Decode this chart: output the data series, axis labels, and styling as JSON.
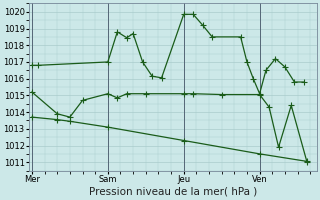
{
  "background_color": "#cce8e8",
  "grid_color": "#aacccc",
  "line_color": "#1a5c1a",
  "title": "Pression niveau de la mer( hPa )",
  "ylim": [
    1010.5,
    1020.5
  ],
  "yticks": [
    1011,
    1012,
    1013,
    1014,
    1015,
    1016,
    1017,
    1018,
    1019,
    1020
  ],
  "day_labels": [
    "Mer",
    "Sam",
    "Jeu",
    "Ven"
  ],
  "day_positions": [
    0,
    24,
    48,
    72
  ],
  "xlim": [
    -1,
    90
  ],
  "vlines_x": [
    0,
    24,
    48,
    72
  ],
  "line1_x": [
    0,
    2,
    24,
    27,
    30,
    32,
    35,
    38,
    41,
    48,
    51,
    54,
    57,
    66,
    68,
    70,
    72,
    74,
    77,
    80,
    83,
    86
  ],
  "line1_y": [
    1016.8,
    1016.8,
    1017.0,
    1018.8,
    1018.45,
    1018.7,
    1017.0,
    1016.15,
    1016.05,
    1019.85,
    1019.85,
    1019.2,
    1018.5,
    1018.5,
    1017.0,
    1016.0,
    1015.1,
    1016.5,
    1017.2,
    1016.7,
    1015.8,
    1015.8
  ],
  "line2_x": [
    0,
    8,
    12,
    16,
    24,
    27,
    30,
    36,
    48,
    51,
    60,
    72,
    75,
    78,
    82,
    87
  ],
  "line2_y": [
    1015.2,
    1013.9,
    1013.7,
    1014.7,
    1015.1,
    1014.85,
    1015.1,
    1015.1,
    1015.1,
    1015.1,
    1015.05,
    1015.05,
    1014.3,
    1011.9,
    1014.4,
    1011.0
  ],
  "line3_x": [
    0,
    8,
    12,
    24,
    48,
    72,
    87
  ],
  "line3_y": [
    1013.7,
    1013.55,
    1013.45,
    1013.1,
    1012.3,
    1011.5,
    1011.05
  ],
  "marker_size": 2.2,
  "linewidth": 0.9,
  "xlabel_fontsize": 7.5,
  "tick_fontsize": 6
}
